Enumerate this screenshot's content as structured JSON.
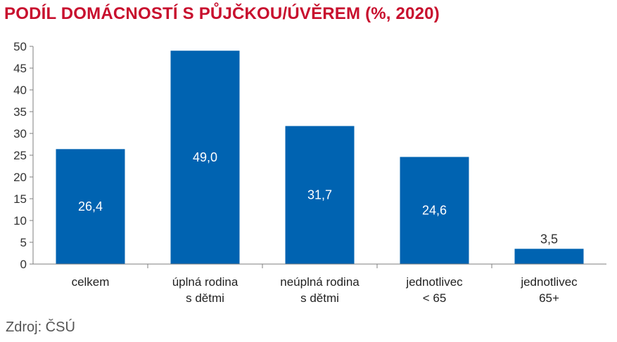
{
  "chart_data": {
    "type": "bar",
    "title": "PODÍL DOMÁCNOSTÍ S PŮJČKOU/ÚVĚREM (%, 2020)",
    "xlabel": "",
    "ylabel": "",
    "categories": [
      [
        "celkem"
      ],
      [
        "úplná rodina",
        "s dětmi"
      ],
      [
        "neúplná rodina",
        "s dětmi"
      ],
      [
        "jednotlivec",
        "< 65"
      ],
      [
        "jednotlivec",
        "65+"
      ]
    ],
    "values": [
      26.4,
      49.0,
      31.7,
      24.6,
      3.5
    ],
    "value_labels": [
      "26,4",
      "49,0",
      "31,7",
      "24,6",
      "3,5"
    ],
    "ylim": [
      0,
      50
    ],
    "yticks": [
      0,
      5,
      10,
      15,
      20,
      25,
      30,
      35,
      40,
      45,
      50
    ],
    "grid": false,
    "legend": "none",
    "colors": {
      "bar": "#0063b1",
      "title": "#c8102e",
      "axis": "#7f7f7f",
      "label_inside": "#ffffff",
      "label_outside": "#333333"
    }
  },
  "source": "Zdroj: ČSÚ"
}
